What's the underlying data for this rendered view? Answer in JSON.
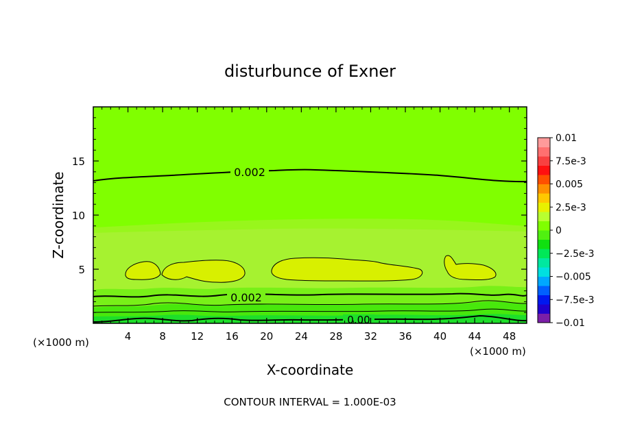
{
  "chart_data": {
    "type": "contour",
    "title": "disturbunce of Exner",
    "xlabel": "X-coordinate",
    "ylabel": "Z-coordinate",
    "x_unit": "(×1000 m)",
    "z_unit": "(×1000 m)",
    "footer": "CONTOUR INTERVAL = 1.000E-03",
    "xlim": [
      0,
      50
    ],
    "ylim": [
      0,
      20
    ],
    "x_ticks": [
      4,
      8,
      12,
      16,
      20,
      24,
      28,
      32,
      36,
      40,
      44,
      48
    ],
    "y_ticks": [
      5,
      10,
      15
    ],
    "contour_labels": [
      {
        "text": "0.002",
        "x": 17.7,
        "z": 14.1
      },
      {
        "text": "0.002",
        "x": 17.6,
        "z": 2.5
      },
      {
        "text": "0.00",
        "x": 30.2,
        "z": 0.35
      }
    ],
    "colorbar": {
      "labels": [
        "0.01",
        "7.5e-3",
        "0.005",
        "2.5e-3",
        "0",
        "−2.5e-3",
        "−0.005",
        "−7.5e-3",
        "−0.01"
      ],
      "min": -0.01,
      "max": 0.01,
      "colors": [
        "#7b1fa8",
        "#2000ce",
        "#0018f0",
        "#0060ff",
        "#00a8ff",
        "#00e0e0",
        "#00e8a0",
        "#00e858",
        "#10e010",
        "#50f010",
        "#80ff00",
        "#b8ff30",
        "#e8f000",
        "#ffc800",
        "#ff9000",
        "#ff5000",
        "#ff1010",
        "#f84040",
        "#ff7070",
        "#ff9a9a"
      ]
    },
    "field_bands": [
      {
        "level": 0.0025,
        "z_range": [
          9,
          20
        ],
        "color": "#80ff00"
      },
      {
        "level": 0.003,
        "z_range": [
          3.3,
          9
        ],
        "color": "#a0f428"
      },
      {
        "level": 0.0035,
        "z_range": [
          4.2,
          6
        ],
        "color": "#d8f000",
        "note": "yellow cells"
      },
      {
        "level": 0.002,
        "z_range": [
          1.7,
          3.3
        ],
        "color": "#70f018"
      },
      {
        "level": 0.0015,
        "z_range": [
          0.9,
          1.7
        ],
        "color": "#40e808"
      },
      {
        "level": 0.0005,
        "z_range": [
          0,
          0.9
        ],
        "color": "#10e020"
      }
    ]
  }
}
